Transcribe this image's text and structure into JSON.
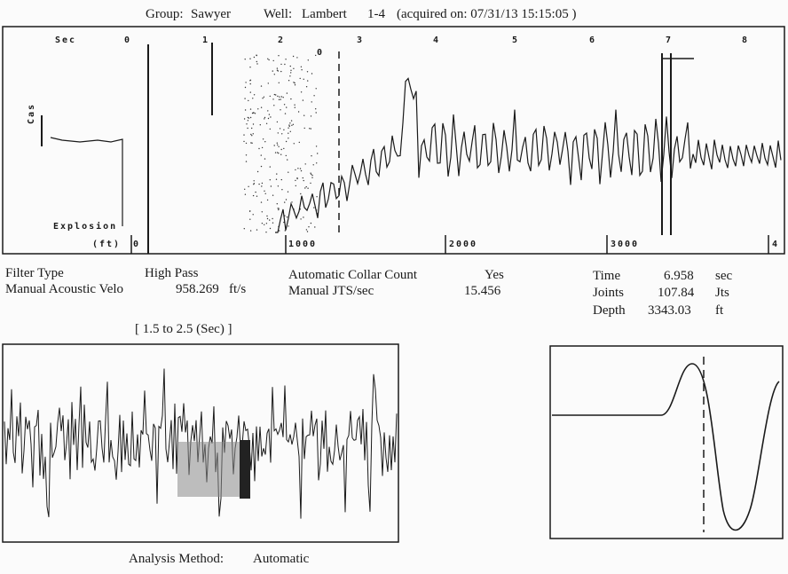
{
  "header": {
    "group_label": "Group:",
    "group_value": "Sawyer",
    "well_label": "Well:",
    "well_value": "Lambert",
    "well_suffix": "1-4",
    "acquired_text": "(acquired on: 07/31/13 15:15:05 )"
  },
  "chart_data": [
    {
      "type": "line",
      "name": "acoustic-trace",
      "x_ticks_top": [
        "Sec",
        "0",
        "1",
        "2",
        "3",
        "4",
        "5",
        "6",
        "7",
        "8"
      ],
      "x_ticks_bottom": [
        "(ft)",
        "0",
        "1000",
        "2000",
        "3000",
        "4"
      ],
      "left_panel_label": "Explosion",
      "left_panel_vertical_label": "Cas",
      "marker_label": "0",
      "selected_time_sec": 6.958
    },
    {
      "type": "line",
      "name": "filtered-segment",
      "range_label": "[ 1.5  to  2.5 (Sec) ]"
    },
    {
      "type": "line",
      "name": "collar-waveform"
    }
  ],
  "params": {
    "filter_type_label": "Filter Type",
    "filter_type_value": "High Pass",
    "velocity_label": "Manual  Acoustic Velo",
    "velocity_value": "958.269",
    "velocity_unit": "ft/s",
    "collar_count_label": "Automatic Collar Count",
    "collar_count_value": "Yes",
    "jts_label": "Manual JTS/sec",
    "jts_value": "15.456",
    "time_label": "Time",
    "time_value": "6.958",
    "time_unit": "sec",
    "joints_label": "Joints",
    "joints_value": "107.84",
    "joints_unit": "Jts",
    "depth_label": "Depth",
    "depth_value": "3343.03",
    "depth_unit": "ft"
  },
  "footer": {
    "analysis_label": "Analysis Method:",
    "analysis_value": "Automatic"
  }
}
